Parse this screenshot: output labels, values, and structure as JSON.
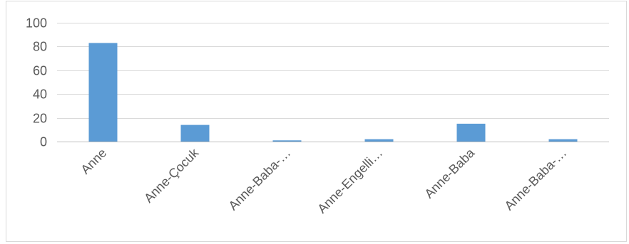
{
  "chart_data": {
    "type": "bar",
    "title": "",
    "xlabel": "",
    "ylabel": "",
    "categories": [
      "Anne",
      "Anne-Çocuk",
      "Anne-Baba-…",
      "Anne-Engelli…",
      "Anne-Baba",
      "Anne-Baba-…"
    ],
    "values": [
      83,
      14,
      1,
      2,
      15,
      2
    ],
    "ylim": [
      0,
      100
    ],
    "yticks": [
      0,
      20,
      40,
      60,
      80,
      100
    ],
    "grid": true,
    "legend": "none",
    "colors": {
      "bar": "#5b9bd5",
      "gridline": "#d9d9d9",
      "text": "#595959"
    }
  }
}
